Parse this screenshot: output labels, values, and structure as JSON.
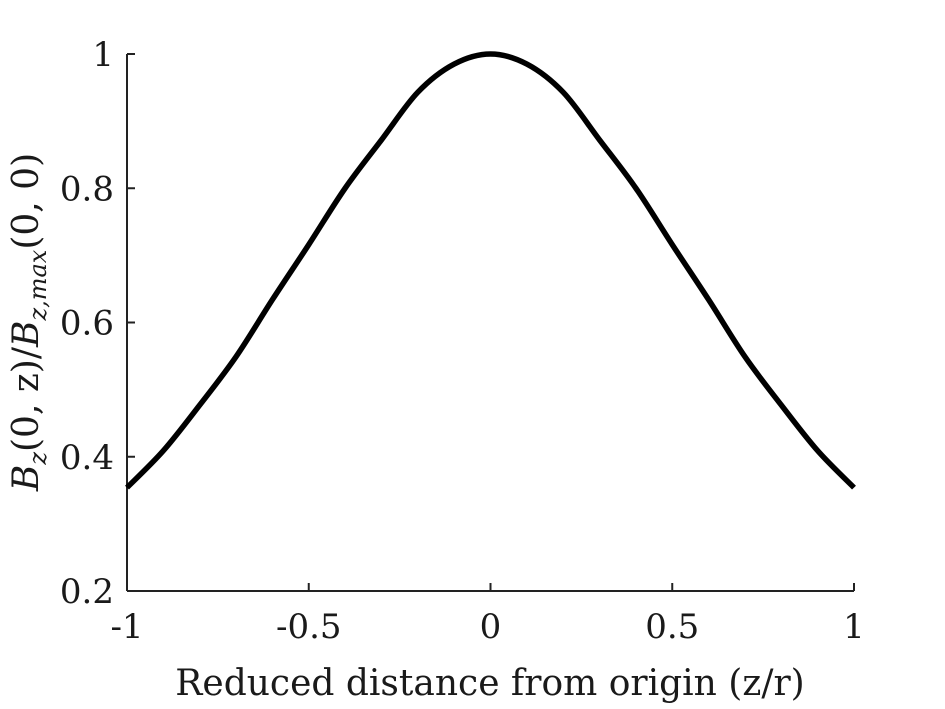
{
  "chart_data": {
    "type": "line",
    "title": "",
    "xlabel": "Reduced distance from origin (z/r)",
    "ylabel_parts": {
      "num_main": "B",
      "num_sub": "z",
      "num_args": "(0, z)",
      "slash": "/",
      "den_main": "B",
      "den_sub": "z,max",
      "den_args": "(0, 0)"
    },
    "xlim": [
      -1,
      1
    ],
    "ylim": [
      0.2,
      1
    ],
    "xticks": [
      -1,
      -0.5,
      0,
      0.5,
      1
    ],
    "xtick_labels": [
      "-1",
      "-0.5",
      "0",
      "0.5",
      "1"
    ],
    "yticks": [
      0.2,
      0.4,
      0.6,
      0.8,
      1
    ],
    "ytick_labels": [
      "0.2",
      "0.4",
      "0.6",
      "0.8",
      "1"
    ],
    "grid": false,
    "series": [
      {
        "color": "#000000",
        "x": [
          -1.0,
          -0.9,
          -0.8,
          -0.7,
          -0.6,
          -0.5,
          -0.4,
          -0.3,
          -0.2,
          -0.1,
          0.0,
          0.1,
          0.2,
          0.3,
          0.4,
          0.5,
          0.6,
          0.7,
          0.8,
          0.9,
          1.0
        ],
        "y": [
          0.354,
          0.409,
          0.477,
          0.549,
          0.634,
          0.716,
          0.8,
          0.872,
          0.943,
          0.985,
          1.0,
          0.985,
          0.943,
          0.872,
          0.8,
          0.716,
          0.634,
          0.549,
          0.477,
          0.409,
          0.354
        ]
      }
    ]
  }
}
